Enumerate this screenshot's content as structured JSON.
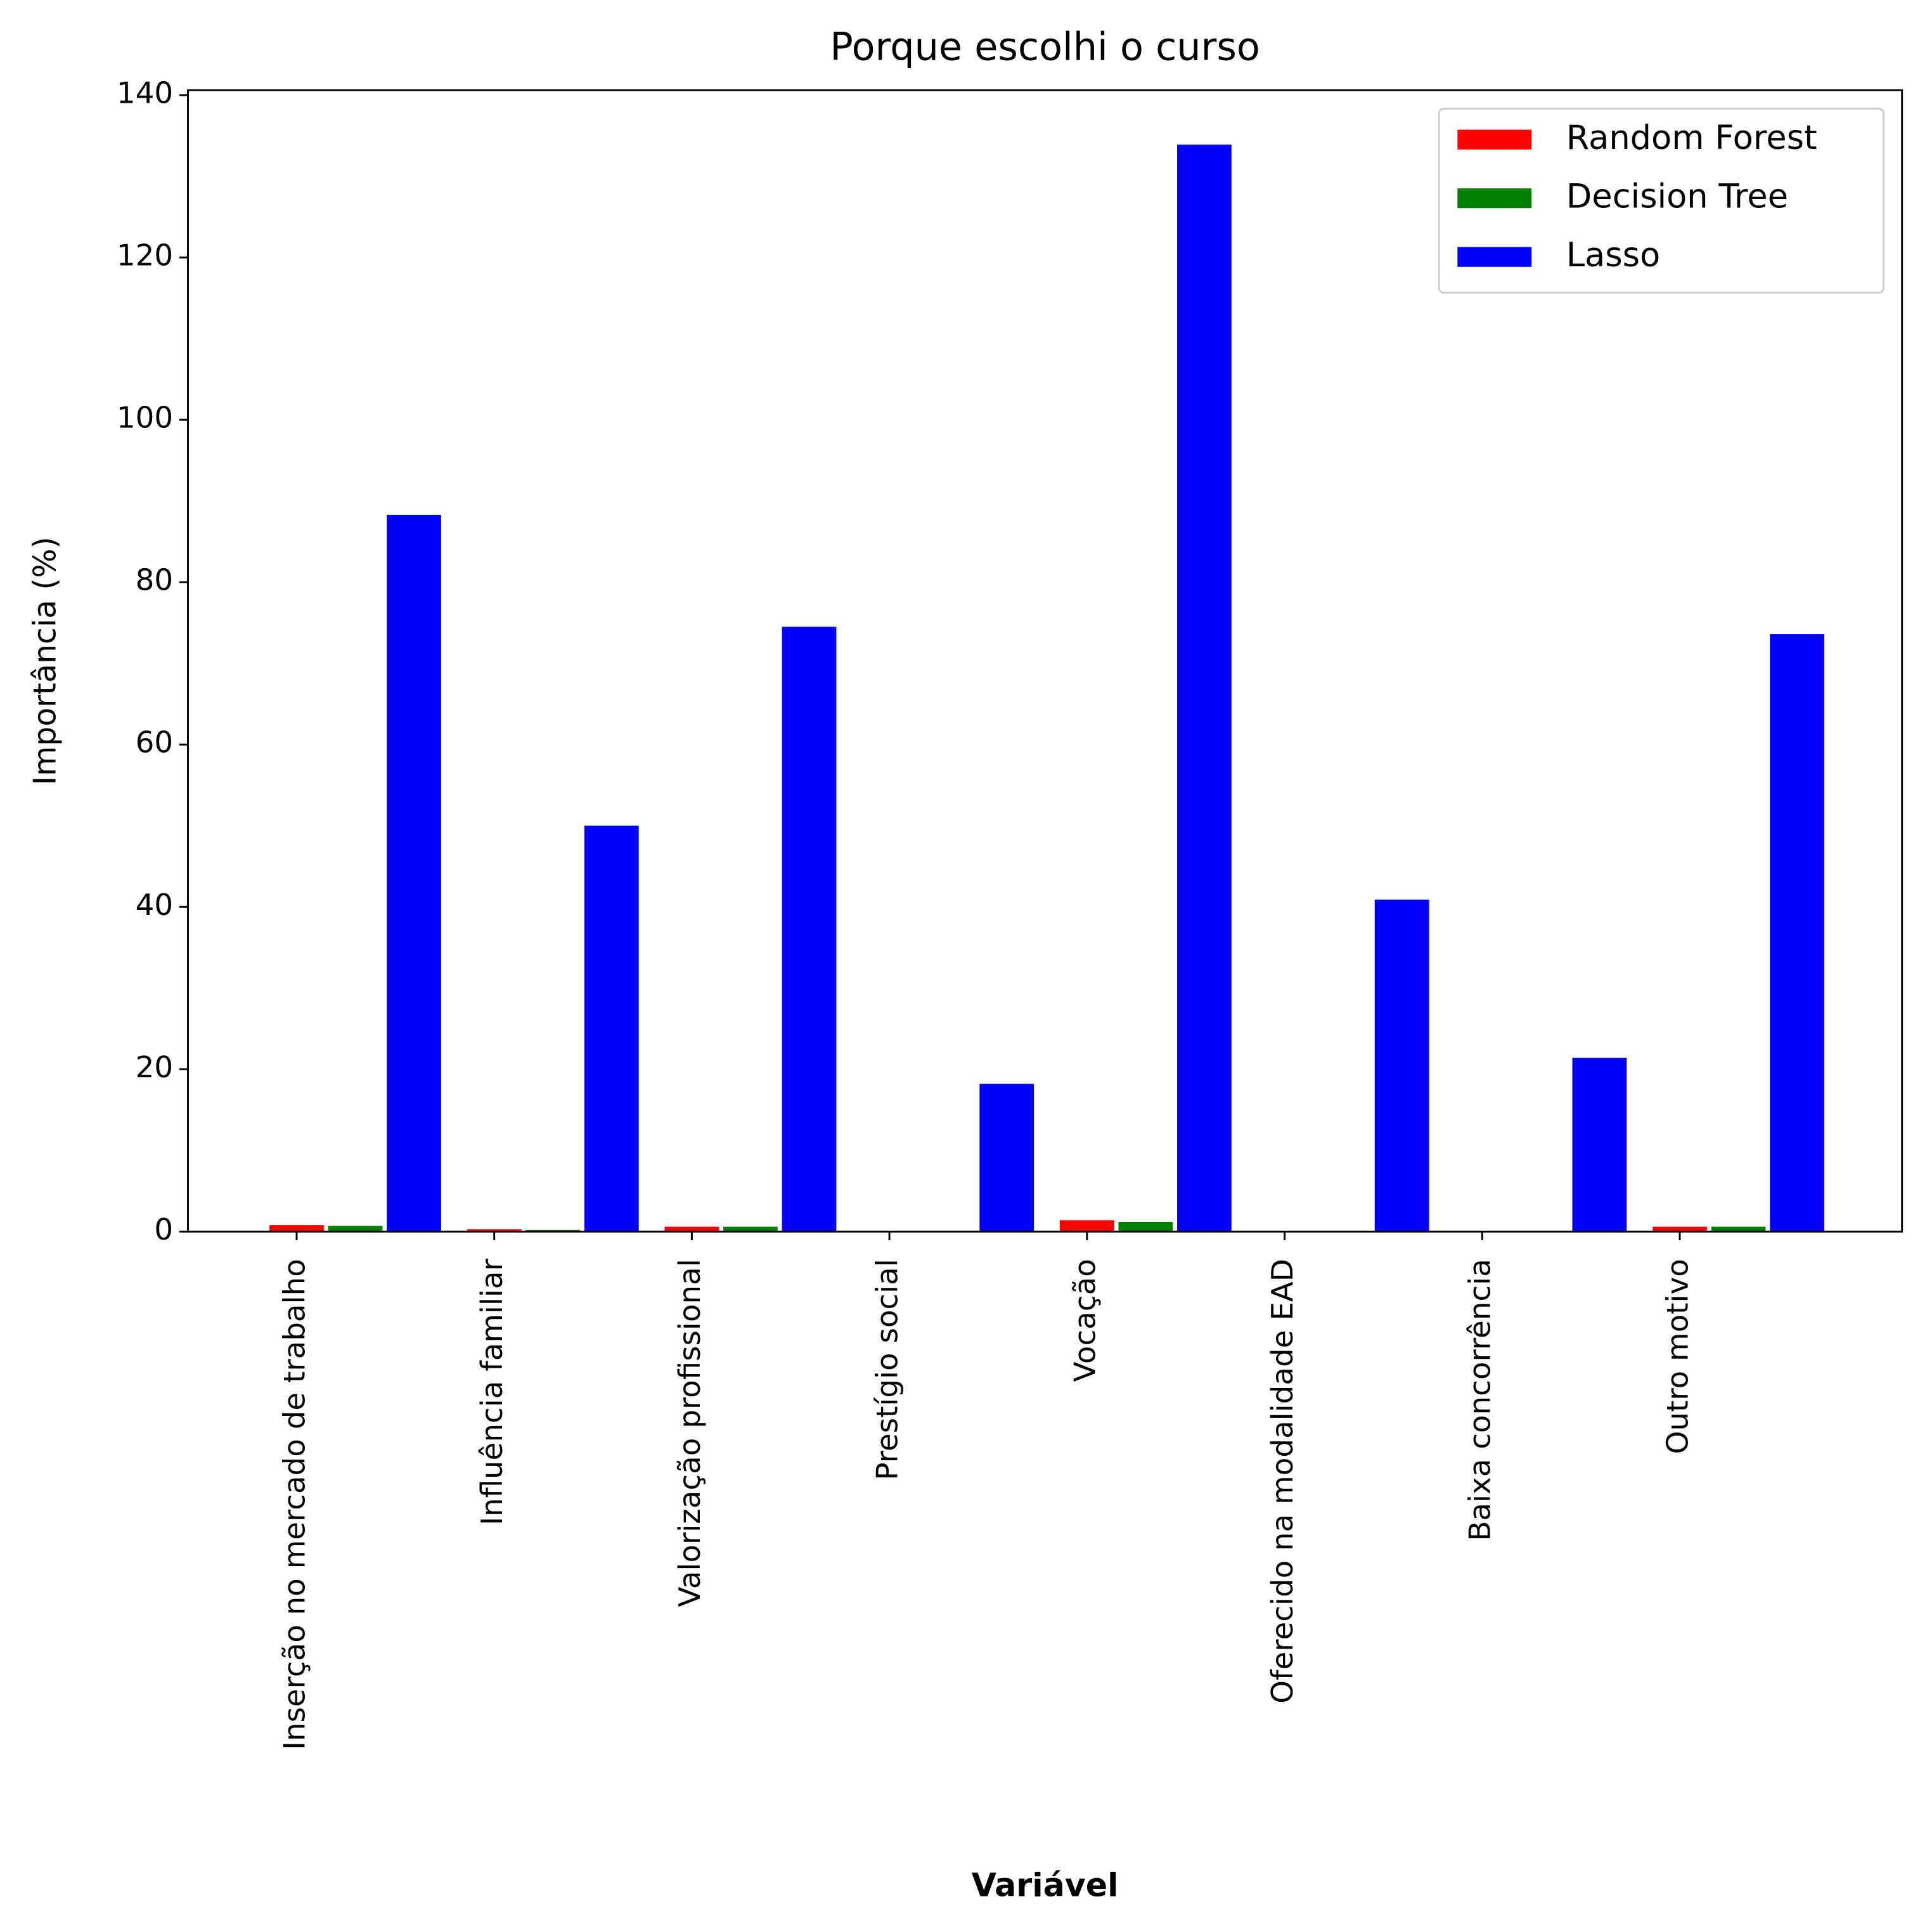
{
  "chart_data": {
    "type": "bar",
    "title": "Porque escolhi o curso",
    "xlabel": "Variável",
    "ylabel": "Importância (%)",
    "categories": [
      "Inserção no mercado de trabalho",
      "Influência familiar",
      "Valorização profissional",
      "Prestígio social",
      "Vocação",
      "Oferecido na modalidade EAD",
      "Baixa concorrência",
      "Outro motivo"
    ],
    "series": [
      {
        "name": "Random Forest",
        "color": "#ff0000",
        "values": [
          0.8,
          0.3,
          0.6,
          0.1,
          1.4,
          0.1,
          0.1,
          0.6
        ]
      },
      {
        "name": "Decision Tree",
        "color": "#008000",
        "values": [
          0.7,
          0.2,
          0.6,
          0.1,
          1.2,
          0.1,
          0.1,
          0.6
        ]
      },
      {
        "name": "Lasso",
        "color": "#0000ff",
        "values": [
          88.3,
          50,
          74.5,
          18.2,
          133.9,
          40.9,
          21.4,
          73.6
        ]
      }
    ],
    "ylim": [
      0,
      140
    ],
    "yticks": [
      0,
      20,
      40,
      60,
      80,
      100,
      120,
      140
    ],
    "legend": "upper right"
  }
}
